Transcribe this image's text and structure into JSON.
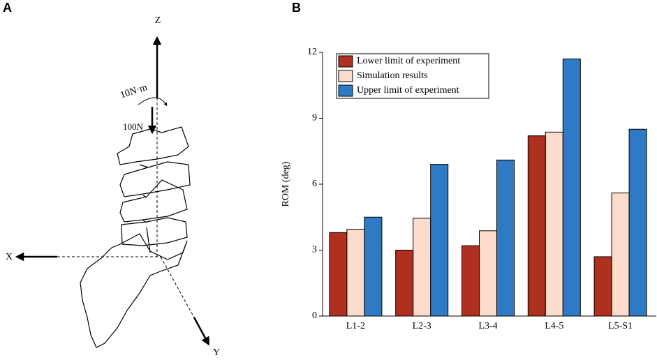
{
  "diagram": {
    "panel_label": "A",
    "axis_z": "Z",
    "axis_x": "X",
    "axis_y": "Y",
    "moment_label": "10N·m",
    "force_label": "100N"
  },
  "chart_data": {
    "type": "bar",
    "panel_label": "B",
    "ylabel": "ROM (deg)",
    "categories": [
      "L1-2",
      "L2-3",
      "L3-4",
      "L4-5",
      "L5-S1"
    ],
    "series": [
      {
        "name": "Lower limit of experiment",
        "color": "#b03020",
        "values": [
          3.8,
          3.0,
          3.2,
          8.2,
          2.7
        ]
      },
      {
        "name": "Simulation results",
        "color": "#fcdccc",
        "values": [
          3.95,
          4.45,
          3.88,
          8.37,
          5.6
        ]
      },
      {
        "name": "Upper limit of experiment",
        "color": "#2f7ac4",
        "values": [
          4.5,
          6.9,
          7.1,
          11.7,
          8.5
        ]
      }
    ],
    "ylim": [
      0,
      12
    ],
    "yticks": [
      0,
      3,
      6,
      9,
      12
    ],
    "legend": "upper-left"
  }
}
